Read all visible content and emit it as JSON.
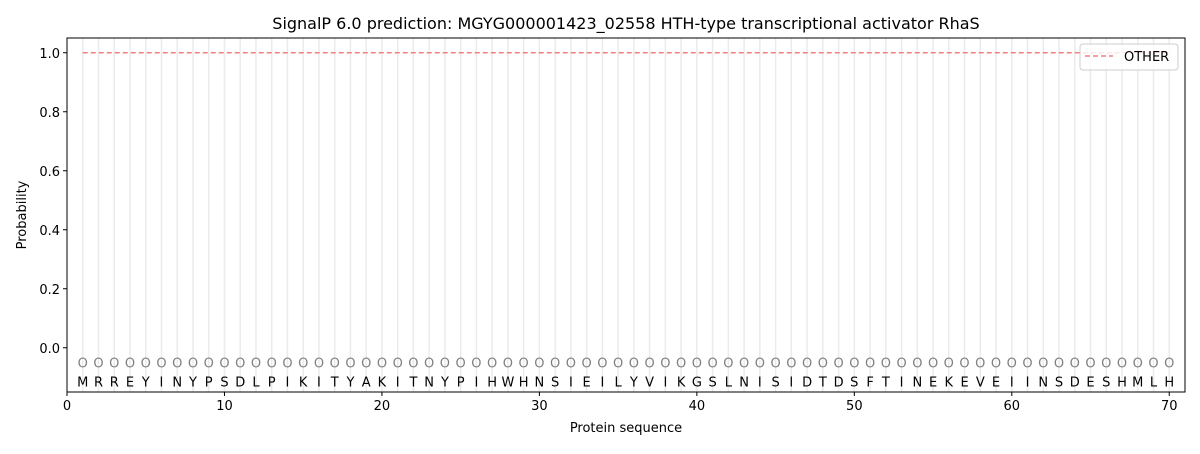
{
  "chart_data": {
    "type": "line",
    "title": "SignalP 6.0 prediction: MGYG000001423_02558 HTH-type transcriptional activator RhaS",
    "xlabel": "Protein sequence",
    "ylabel": "Probability",
    "xlim": [
      0,
      71
    ],
    "ylim": [
      -0.15,
      1.05
    ],
    "xticks": [
      0,
      10,
      20,
      30,
      40,
      50,
      60,
      70
    ],
    "yticks": [
      0.0,
      0.2,
      0.4,
      0.6,
      0.8,
      1.0
    ],
    "ytick_labels": [
      "0.0",
      "0.2",
      "0.4",
      "0.6",
      "0.8",
      "1.0"
    ],
    "sequence": "MRREYINYPSDLPIKITYAKITNYPIHWHNSIEILYVIKGSLNISIDTDSFTINEKEVEIINSDESHMLH",
    "predicted_labels": "OOOOOOOOOOOOOOOOOOOOOOOOOOOOOOOOOOOOOOOOOOOOOOOOOOOOOOOOOOOOOOOOOOOOOO",
    "series": [
      {
        "name": "OTHER",
        "color": "#f08080",
        "style": "dashed",
        "x_start": 1,
        "x_end": 70,
        "value": 1.0
      }
    ],
    "legend": {
      "placement": "top-right",
      "entries": [
        "OTHER"
      ]
    },
    "grid": "vertical lines at each residue"
  }
}
